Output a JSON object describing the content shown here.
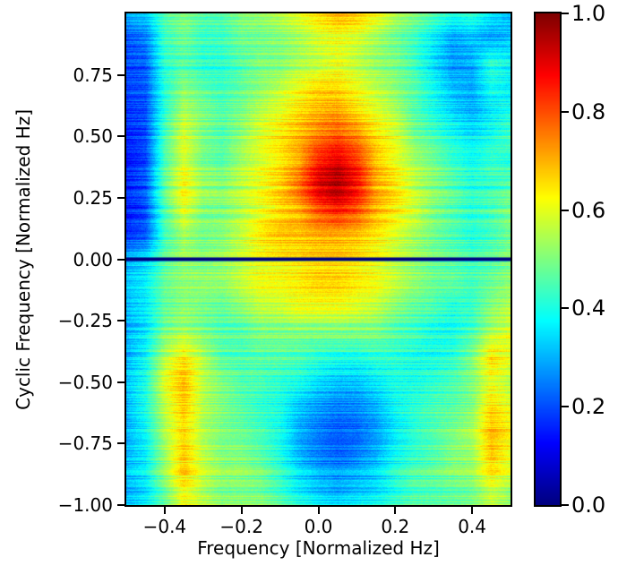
{
  "figure": {
    "background": "#ffffff",
    "axis_color": "#000000"
  },
  "chart_data": {
    "type": "heatmap",
    "title": "",
    "xlabel": "Frequency [Normalized Hz]",
    "ylabel": "Cyclic Frequency [Normalized Hz]",
    "xlim": [
      -0.5,
      0.5
    ],
    "ylim": [
      -1.0,
      1.0
    ],
    "xticks": [
      -0.4,
      -0.2,
      0.0,
      0.2,
      0.4
    ],
    "xtick_labels": [
      "−0.4",
      "−0.2",
      "0.0",
      "0.2",
      "0.4"
    ],
    "yticks": [
      0.75,
      0.5,
      0.25,
      0.0,
      -0.25,
      -0.5,
      -0.75,
      -1.0
    ],
    "ytick_labels": [
      "0.75",
      "0.50",
      "0.25",
      "0.00",
      "−0.25",
      "−0.50",
      "−0.75",
      "−1.00"
    ],
    "colormap": "jet",
    "grid": false,
    "colorbar": {
      "range": [
        0.0,
        1.0
      ],
      "ticks": [
        0.0,
        0.2,
        0.4,
        0.6,
        0.8,
        1.0
      ],
      "labels": [
        "0.0",
        "0.2",
        "0.4",
        "0.6",
        "0.8",
        "1.0"
      ]
    },
    "zero_line": {
      "y": 0.0,
      "value": 0.0,
      "color": "#000080"
    },
    "hotspot": {
      "x": 0.07,
      "y": 0.33,
      "peak": 0.95
    },
    "grid_x": [
      -0.5,
      -0.45,
      -0.4,
      -0.35,
      -0.3,
      -0.25,
      -0.2,
      -0.15,
      -0.1,
      -0.05,
      0.0,
      0.05,
      0.1,
      0.15,
      0.2,
      0.25,
      0.3,
      0.35,
      0.4,
      0.45,
      0.5
    ],
    "grid_y": [
      1.0,
      0.9,
      0.8,
      0.7,
      0.6,
      0.5,
      0.4,
      0.3,
      0.2,
      0.1,
      0.0,
      -0.1,
      -0.2,
      -0.3,
      -0.4,
      -0.5,
      -0.6,
      -0.7,
      -0.8,
      -0.9,
      -1.0
    ],
    "values": [
      [
        0.3,
        0.32,
        0.45,
        0.5,
        0.45,
        0.45,
        0.5,
        0.52,
        0.55,
        0.6,
        0.65,
        0.7,
        0.68,
        0.62,
        0.55,
        0.5,
        0.45,
        0.4,
        0.42,
        0.35,
        0.3
      ],
      [
        0.22,
        0.26,
        0.45,
        0.5,
        0.45,
        0.45,
        0.5,
        0.5,
        0.52,
        0.55,
        0.6,
        0.62,
        0.6,
        0.55,
        0.5,
        0.45,
        0.38,
        0.3,
        0.33,
        0.3,
        0.33
      ],
      [
        0.2,
        0.22,
        0.42,
        0.46,
        0.42,
        0.42,
        0.46,
        0.5,
        0.5,
        0.54,
        0.56,
        0.6,
        0.56,
        0.52,
        0.5,
        0.44,
        0.35,
        0.28,
        0.3,
        0.42,
        0.38
      ],
      [
        0.18,
        0.2,
        0.4,
        0.5,
        0.45,
        0.42,
        0.46,
        0.5,
        0.55,
        0.6,
        0.65,
        0.65,
        0.6,
        0.55,
        0.5,
        0.45,
        0.38,
        0.3,
        0.28,
        0.38,
        0.35
      ],
      [
        0.18,
        0.2,
        0.42,
        0.55,
        0.5,
        0.46,
        0.5,
        0.56,
        0.6,
        0.66,
        0.7,
        0.72,
        0.66,
        0.6,
        0.55,
        0.46,
        0.4,
        0.34,
        0.3,
        0.36,
        0.4
      ],
      [
        0.16,
        0.2,
        0.45,
        0.6,
        0.5,
        0.46,
        0.52,
        0.6,
        0.65,
        0.7,
        0.76,
        0.8,
        0.75,
        0.66,
        0.6,
        0.5,
        0.45,
        0.4,
        0.36,
        0.4,
        0.45
      ],
      [
        0.15,
        0.2,
        0.46,
        0.6,
        0.5,
        0.47,
        0.55,
        0.6,
        0.65,
        0.72,
        0.86,
        0.92,
        0.84,
        0.7,
        0.62,
        0.55,
        0.5,
        0.44,
        0.4,
        0.44,
        0.42
      ],
      [
        0.15,
        0.2,
        0.46,
        0.62,
        0.52,
        0.5,
        0.55,
        0.6,
        0.66,
        0.76,
        0.9,
        0.95,
        0.86,
        0.7,
        0.64,
        0.55,
        0.5,
        0.45,
        0.4,
        0.42,
        0.45
      ],
      [
        0.15,
        0.2,
        0.45,
        0.6,
        0.5,
        0.5,
        0.55,
        0.6,
        0.66,
        0.7,
        0.8,
        0.85,
        0.8,
        0.7,
        0.64,
        0.58,
        0.5,
        0.46,
        0.42,
        0.45,
        0.5
      ],
      [
        0.18,
        0.22,
        0.45,
        0.55,
        0.5,
        0.52,
        0.58,
        0.66,
        0.7,
        0.7,
        0.72,
        0.72,
        0.7,
        0.66,
        0.6,
        0.55,
        0.5,
        0.46,
        0.42,
        0.45,
        0.5
      ],
      [
        0.3,
        0.34,
        0.46,
        0.52,
        0.5,
        0.52,
        0.56,
        0.6,
        0.62,
        0.64,
        0.66,
        0.66,
        0.64,
        0.6,
        0.56,
        0.52,
        0.48,
        0.46,
        0.44,
        0.46,
        0.5
      ],
      [
        0.3,
        0.35,
        0.46,
        0.5,
        0.5,
        0.5,
        0.55,
        0.6,
        0.6,
        0.62,
        0.65,
        0.65,
        0.62,
        0.6,
        0.55,
        0.5,
        0.46,
        0.45,
        0.42,
        0.46,
        0.5
      ],
      [
        0.3,
        0.35,
        0.46,
        0.5,
        0.48,
        0.46,
        0.5,
        0.55,
        0.56,
        0.6,
        0.6,
        0.6,
        0.58,
        0.55,
        0.5,
        0.46,
        0.44,
        0.4,
        0.42,
        0.5,
        0.55
      ],
      [
        0.3,
        0.36,
        0.5,
        0.55,
        0.5,
        0.46,
        0.46,
        0.5,
        0.5,
        0.5,
        0.5,
        0.5,
        0.5,
        0.5,
        0.46,
        0.44,
        0.4,
        0.4,
        0.45,
        0.55,
        0.6
      ],
      [
        0.3,
        0.38,
        0.55,
        0.65,
        0.55,
        0.46,
        0.45,
        0.46,
        0.46,
        0.45,
        0.42,
        0.4,
        0.4,
        0.42,
        0.42,
        0.4,
        0.4,
        0.42,
        0.5,
        0.66,
        0.6
      ],
      [
        0.32,
        0.4,
        0.6,
        0.7,
        0.56,
        0.5,
        0.46,
        0.45,
        0.42,
        0.4,
        0.35,
        0.32,
        0.32,
        0.36,
        0.4,
        0.4,
        0.42,
        0.45,
        0.5,
        0.6,
        0.55
      ],
      [
        0.3,
        0.4,
        0.56,
        0.68,
        0.55,
        0.5,
        0.46,
        0.42,
        0.4,
        0.32,
        0.28,
        0.25,
        0.26,
        0.3,
        0.38,
        0.42,
        0.45,
        0.46,
        0.5,
        0.66,
        0.6
      ],
      [
        0.3,
        0.38,
        0.55,
        0.66,
        0.55,
        0.5,
        0.48,
        0.45,
        0.4,
        0.3,
        0.25,
        0.22,
        0.23,
        0.28,
        0.36,
        0.42,
        0.46,
        0.5,
        0.55,
        0.7,
        0.64
      ],
      [
        0.3,
        0.36,
        0.52,
        0.68,
        0.56,
        0.5,
        0.5,
        0.46,
        0.4,
        0.3,
        0.25,
        0.22,
        0.25,
        0.3,
        0.38,
        0.42,
        0.45,
        0.5,
        0.52,
        0.68,
        0.6
      ],
      [
        0.3,
        0.35,
        0.5,
        0.65,
        0.55,
        0.5,
        0.5,
        0.48,
        0.42,
        0.35,
        0.3,
        0.28,
        0.3,
        0.33,
        0.4,
        0.45,
        0.46,
        0.48,
        0.5,
        0.6,
        0.55
      ],
      [
        0.3,
        0.35,
        0.46,
        0.6,
        0.55,
        0.5,
        0.5,
        0.5,
        0.46,
        0.4,
        0.36,
        0.33,
        0.36,
        0.38,
        0.42,
        0.45,
        0.45,
        0.46,
        0.48,
        0.55,
        0.5
      ]
    ]
  }
}
